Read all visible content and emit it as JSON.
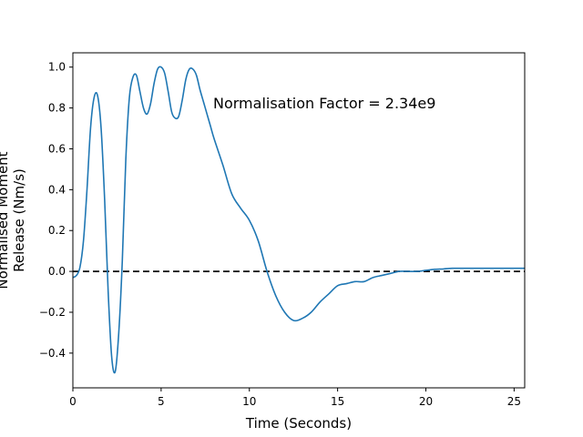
{
  "chart_data": {
    "type": "line",
    "xlabel": "Time (Seconds)",
    "ylabel_lines": [
      "Normalised Moment",
      "Release (Nm/s)"
    ],
    "annotation": "Normalisation Factor = 2.34e9",
    "xlim": [
      0,
      25.6
    ],
    "ylim": [
      -0.57,
      1.07
    ],
    "x_ticks": [
      0,
      5,
      10,
      15,
      20,
      25
    ],
    "y_ticks": [
      -0.4,
      -0.2,
      0.0,
      0.2,
      0.4,
      0.6,
      0.8,
      1.0
    ],
    "x_tick_labels": [
      "0",
      "5",
      "10",
      "15",
      "20",
      "25"
    ],
    "y_tick_labels": [
      "−0.4",
      "−0.2",
      "0.0",
      "0.2",
      "0.4",
      "0.6",
      "0.8",
      "1.0"
    ],
    "reference_line": {
      "y": 0,
      "style": "dashed",
      "color": "#000000"
    },
    "grid": false,
    "series": [
      {
        "color": "#1f77b4",
        "x": [
          0,
          0.2,
          0.4,
          0.6,
          0.8,
          1.0,
          1.2,
          1.4,
          1.6,
          1.8,
          2.0,
          2.2,
          2.4,
          2.6,
          2.8,
          3.0,
          3.2,
          3.4,
          3.6,
          3.8,
          4.0,
          4.2,
          4.4,
          4.6,
          4.8,
          5.0,
          5.2,
          5.4,
          5.6,
          5.8,
          6.0,
          6.2,
          6.4,
          6.6,
          6.8,
          7.0,
          7.2,
          7.4,
          7.6,
          7.8,
          8.0,
          8.5,
          9.0,
          9.5,
          10.0,
          10.5,
          11.0,
          11.5,
          12.0,
          12.5,
          13.0,
          13.5,
          14.0,
          14.5,
          15.0,
          15.5,
          16.0,
          16.5,
          17.0,
          17.5,
          18.0,
          18.5,
          19.0,
          19.5,
          20.0,
          20.5,
          21.0,
          21.5,
          22.0,
          22.5,
          23.0,
          23.5,
          24.0,
          24.5,
          25.0,
          25.6
        ],
        "y": [
          -0.03,
          -0.02,
          0.02,
          0.15,
          0.4,
          0.7,
          0.85,
          0.86,
          0.7,
          0.35,
          -0.1,
          -0.42,
          -0.49,
          -0.3,
          0.05,
          0.55,
          0.85,
          0.95,
          0.96,
          0.88,
          0.8,
          0.77,
          0.82,
          0.92,
          0.99,
          1.0,
          0.97,
          0.88,
          0.78,
          0.75,
          0.76,
          0.84,
          0.94,
          0.99,
          0.99,
          0.96,
          0.89,
          0.83,
          0.77,
          0.71,
          0.65,
          0.52,
          0.38,
          0.31,
          0.25,
          0.15,
          0.0,
          -0.12,
          -0.2,
          -0.24,
          -0.23,
          -0.2,
          -0.15,
          -0.11,
          -0.07,
          -0.06,
          -0.05,
          -0.05,
          -0.03,
          -0.02,
          -0.01,
          0.0,
          0.0,
          0.0,
          0.005,
          0.01,
          0.012,
          0.015,
          0.015,
          0.015,
          0.015,
          0.015,
          0.015,
          0.015,
          0.015,
          0.015
        ]
      }
    ]
  }
}
